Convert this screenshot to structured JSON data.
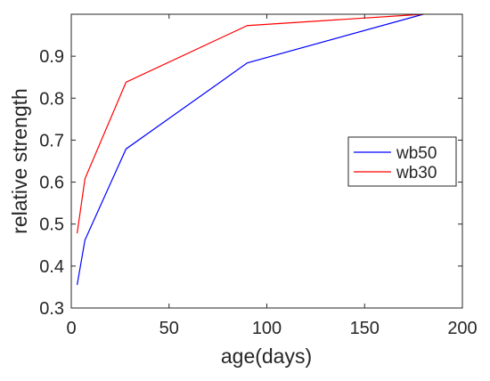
{
  "chart_data": {
    "type": "line",
    "title": "",
    "xlabel": "age(days)",
    "ylabel": "relative strength",
    "xlim": [
      0,
      200
    ],
    "ylim": [
      0.3,
      1.0
    ],
    "xticks": [
      0,
      50,
      100,
      150,
      200
    ],
    "xtick_labels": [
      "0",
      "50",
      "100",
      "150",
      "200"
    ],
    "yticks": [
      0.3,
      0.4,
      0.5,
      0.6,
      0.7,
      0.8,
      0.9
    ],
    "ytick_labels": [
      "0.3",
      "0.4",
      "0.5",
      "0.6",
      "0.7",
      "0.8",
      "0.9"
    ],
    "grid": false,
    "legend_position": "right",
    "series": [
      {
        "name": "wb50",
        "color": "#0000ff",
        "x": [
          3,
          7,
          28,
          90,
          180
        ],
        "y": [
          0.355,
          0.462,
          0.679,
          0.884,
          1.0
        ]
      },
      {
        "name": "wb30",
        "color": "#ff0000",
        "x": [
          3,
          7,
          28,
          90,
          180
        ],
        "y": [
          0.478,
          0.608,
          0.838,
          0.973,
          1.0
        ]
      }
    ]
  }
}
